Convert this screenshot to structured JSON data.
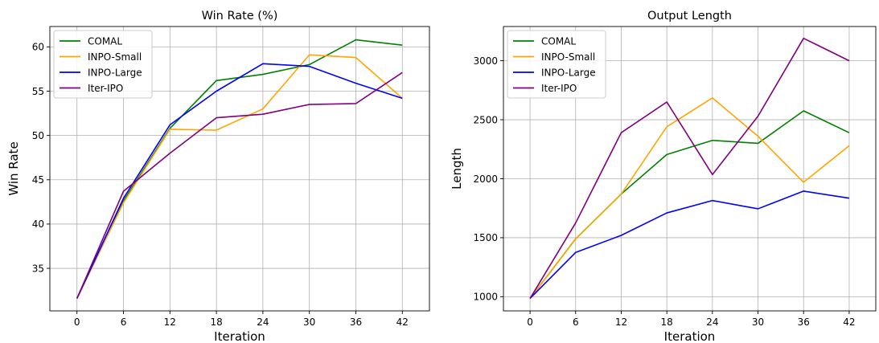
{
  "chart_data": [
    {
      "type": "line",
      "title": "Win Rate (%)",
      "xlabel": "Iteration",
      "ylabel": "Win Rate",
      "x": [
        0,
        6,
        12,
        18,
        24,
        30,
        36,
        42
      ],
      "xticks": [
        0,
        6,
        12,
        18,
        24,
        30,
        36,
        42
      ],
      "yticks": [
        35,
        40,
        45,
        50,
        55,
        60
      ],
      "xlim": [
        -3.5,
        45.5
      ],
      "ylim": [
        30.2,
        62.3
      ],
      "grid": true,
      "legend_position": "top-left",
      "series": [
        {
          "name": "COMAL",
          "color": "#008000",
          "values": [
            31.6,
            42.6,
            50.8,
            56.2,
            56.9,
            58.0,
            60.8,
            60.2
          ]
        },
        {
          "name": "INPO-Small",
          "color": "#ffa500",
          "values": [
            31.6,
            42.4,
            50.7,
            50.6,
            53.0,
            59.1,
            58.8,
            54.2
          ]
        },
        {
          "name": "INPO-Large",
          "color": "#0000ff",
          "values": [
            31.6,
            42.9,
            51.2,
            55.0,
            58.1,
            57.8,
            55.9,
            54.2
          ]
        },
        {
          "name": "Iter-IPO",
          "color": "#800080",
          "values": [
            31.6,
            43.7,
            48.0,
            52.0,
            52.4,
            53.5,
            53.6,
            57.1
          ]
        }
      ]
    },
    {
      "type": "line",
      "title": "Output Length",
      "xlabel": "Iteration",
      "ylabel": "Length",
      "x": [
        0,
        6,
        12,
        18,
        24,
        30,
        36,
        42
      ],
      "xticks": [
        0,
        6,
        12,
        18,
        24,
        30,
        36,
        42
      ],
      "yticks": [
        1000,
        1500,
        2000,
        2500,
        3000
      ],
      "xlim": [
        -3.5,
        45.5
      ],
      "ylim": [
        880,
        3290
      ],
      "grid": true,
      "legend_position": "top-left",
      "series": [
        {
          "name": "COMAL",
          "color": "#008000",
          "values": [
            985,
            1490,
            1870,
            2205,
            2325,
            2300,
            2575,
            2390
          ]
        },
        {
          "name": "INPO-Small",
          "color": "#ffa500",
          "values": [
            985,
            1490,
            1870,
            2440,
            2685,
            2360,
            1970,
            2280
          ]
        },
        {
          "name": "INPO-Large",
          "color": "#0000ff",
          "values": [
            985,
            1375,
            1520,
            1710,
            1815,
            1745,
            1895,
            1835
          ]
        },
        {
          "name": "Iter-IPO",
          "color": "#800080",
          "values": [
            985,
            1625,
            2390,
            2650,
            2035,
            2530,
            3190,
            3000
          ]
        }
      ]
    }
  ]
}
